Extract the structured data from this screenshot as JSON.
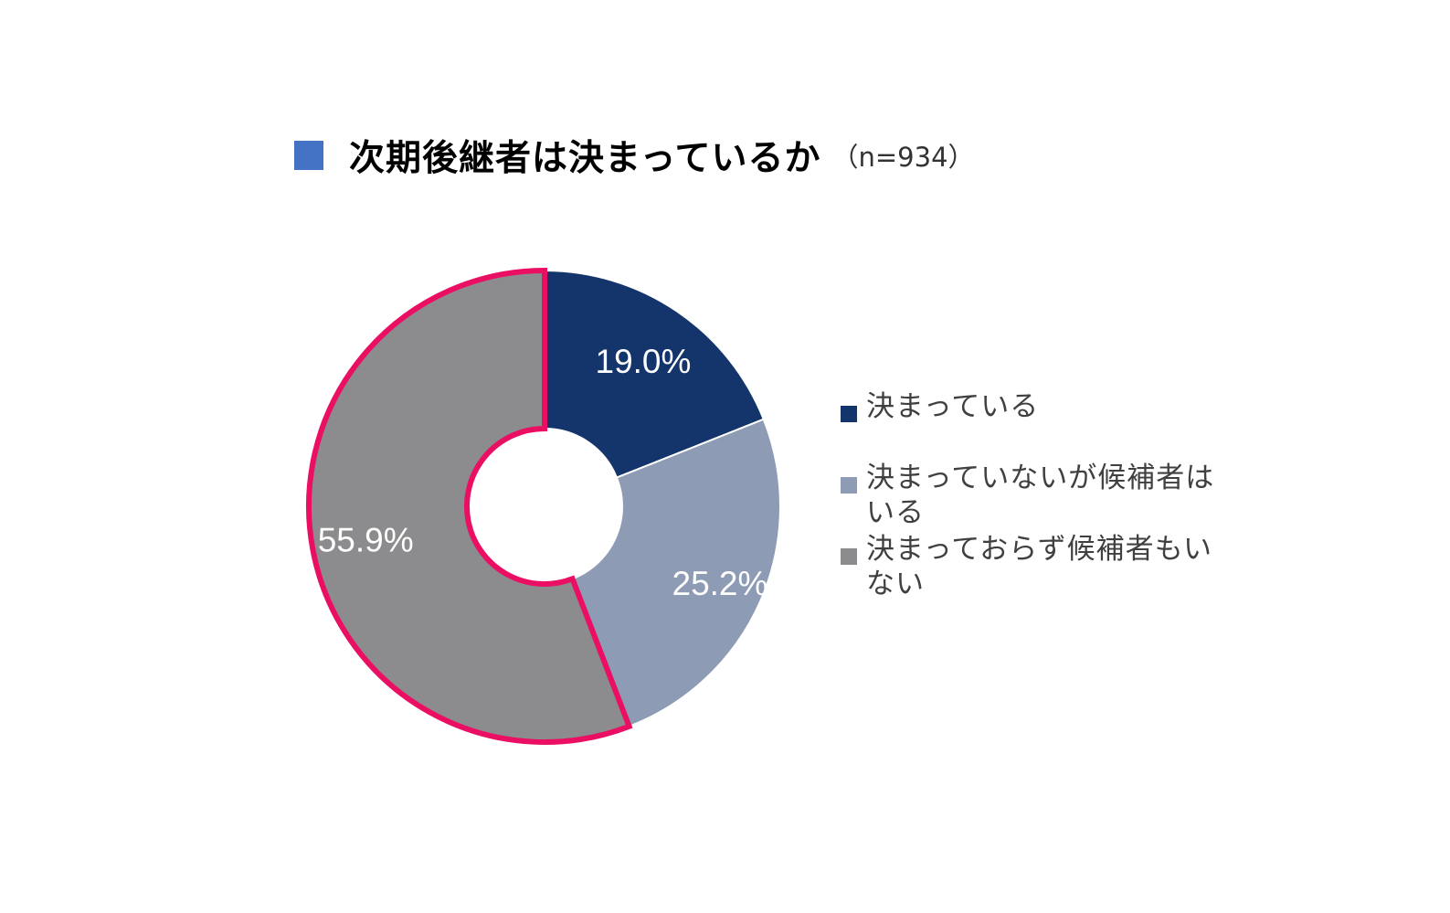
{
  "chart_data": {
    "type": "pie",
    "variant": "donut",
    "title": "次期後継者は決まっているか",
    "subtitle": "（n=934）",
    "categories": [
      "決まっている",
      "決まっていないが候補者はいる",
      "決まっておらず候補者もいない"
    ],
    "values": [
      19.0,
      25.2,
      55.9
    ],
    "data_labels": [
      "19.0%",
      "25.2%",
      "55.9%"
    ],
    "colors": [
      "#14356B",
      "#8D9BB5",
      "#8C8B8D"
    ],
    "highlight_color": "#EB0F64",
    "highlighted_slice": 2,
    "start_angle": "12 o'clock",
    "direction": "clockwise",
    "legend_position": "right"
  },
  "title_marker_color": "#4472C4",
  "legend": {
    "items": [
      {
        "label": "決まっている"
      },
      {
        "label": "決まっていないが候補者はいる"
      },
      {
        "label": "決まっておらず候補者もいない"
      }
    ]
  }
}
